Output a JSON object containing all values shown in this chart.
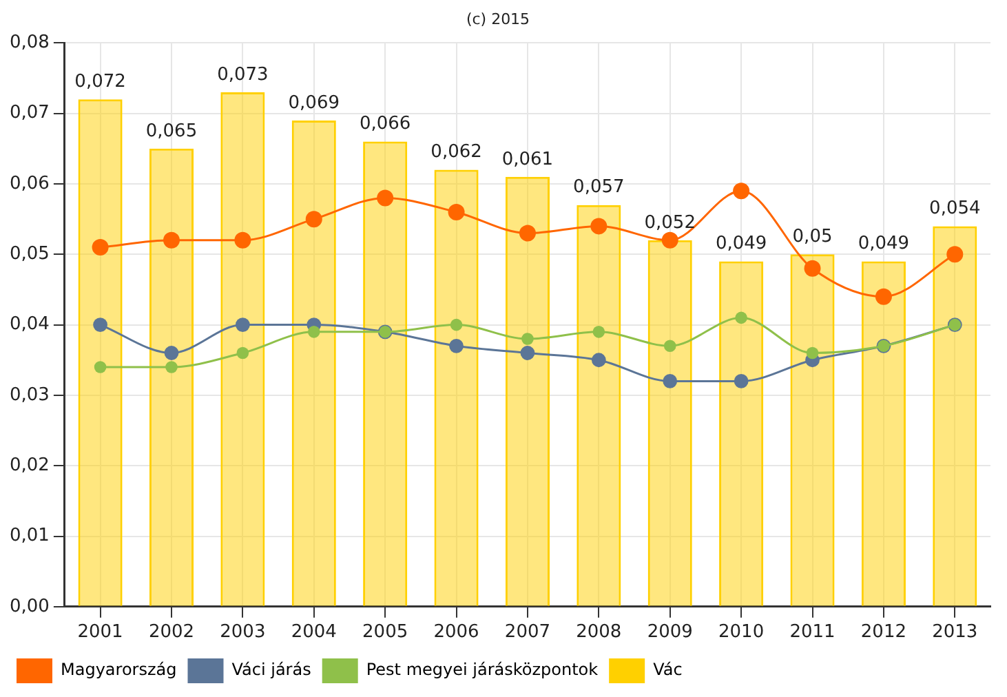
{
  "chart_data": {
    "type": "bar",
    "title": "(c) 2015",
    "categories": [
      "2001",
      "2002",
      "2003",
      "2004",
      "2005",
      "2006",
      "2007",
      "2008",
      "2009",
      "2010",
      "2011",
      "2012",
      "2013"
    ],
    "series": [
      {
        "name": "Magyarország",
        "type": "line",
        "color": "#ff6600",
        "values": [
          0.051,
          0.052,
          0.052,
          0.055,
          0.058,
          0.056,
          0.053,
          0.054,
          0.052,
          0.059,
          0.048,
          0.044,
          0.05
        ]
      },
      {
        "name": "Váci járás",
        "type": "line",
        "color": "#5b7597",
        "values": [
          0.04,
          0.036,
          0.04,
          0.04,
          0.039,
          0.037,
          0.036,
          0.035,
          0.032,
          0.032,
          0.035,
          0.037,
          0.04
        ]
      },
      {
        "name": "Pest megyei járásközpontok",
        "type": "line",
        "color": "#8fc04a",
        "values": [
          0.034,
          0.034,
          0.036,
          0.039,
          0.039,
          0.04,
          0.038,
          0.039,
          0.037,
          0.041,
          0.036,
          0.037,
          0.04
        ]
      },
      {
        "name": "Vác",
        "color": "#ffd000",
        "values": [
          0.072,
          0.065,
          0.073,
          0.069,
          0.066,
          0.062,
          0.061,
          0.057,
          0.052,
          0.049,
          0.05,
          0.049,
          0.054
        ],
        "value_labels": [
          "0,072",
          "0,065",
          "0,073",
          "0,069",
          "0,066",
          "0,062",
          "0,061",
          "0,057",
          "0,052",
          "0,049",
          "0,05",
          "0,049",
          "0,054"
        ]
      }
    ],
    "ylim": [
      0,
      0.08
    ],
    "yticks": [
      {
        "value": 0,
        "label": "0,00"
      },
      {
        "value": 0.01,
        "label": "0,01"
      },
      {
        "value": 0.02,
        "label": "0,02"
      },
      {
        "value": 0.03,
        "label": "0,03"
      },
      {
        "value": 0.04,
        "label": "0,04"
      },
      {
        "value": 0.05,
        "label": "0,05"
      },
      {
        "value": 0.06,
        "label": "0,06"
      },
      {
        "value": 0.07,
        "label": "0,07"
      },
      {
        "value": 0.08,
        "label": "0,08"
      }
    ],
    "grid": true,
    "legend": "bottom",
    "marker": "circle",
    "line_style": "solid"
  }
}
